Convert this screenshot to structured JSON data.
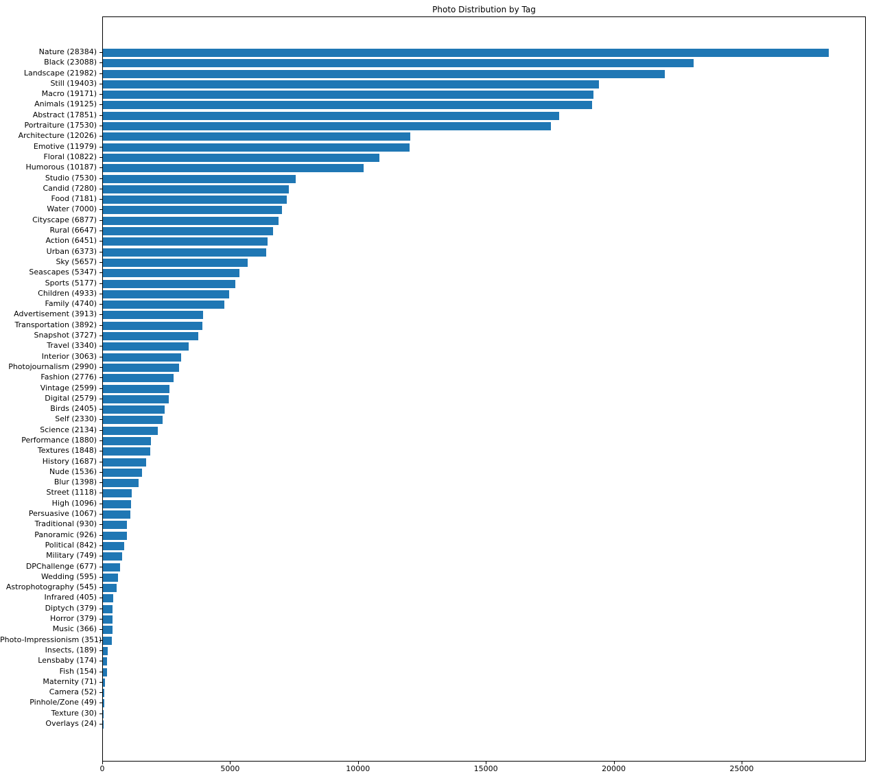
{
  "chart_data": {
    "type": "bar",
    "orientation": "horizontal",
    "title": "Photo Distribution by Tag",
    "xlabel": "",
    "ylabel": "",
    "categories": [
      "Nature (28384)",
      "Black (23088)",
      "Landscape (21982)",
      "Still (19403)",
      "Macro (19171)",
      "Animals (19125)",
      "Abstract (17851)",
      "Portraiture (17530)",
      "Architecture (12026)",
      "Emotive (11979)",
      "Floral (10822)",
      "Humorous (10187)",
      "Studio (7530)",
      "Candid (7280)",
      "Food (7181)",
      "Water (7000)",
      "Cityscape (6877)",
      "Rural (6647)",
      "Action (6451)",
      "Urban (6373)",
      "Sky (5657)",
      "Seascapes (5347)",
      "Sports (5177)",
      "Children (4933)",
      "Family (4740)",
      "Advertisement (3913)",
      "Transportation (3892)",
      "Snapshot (3727)",
      "Travel (3340)",
      "Interior (3063)",
      "Photojournalism (2990)",
      "Fashion (2776)",
      "Vintage (2599)",
      "Digital (2579)",
      "Birds (2405)",
      "Self (2330)",
      "Science (2134)",
      "Performance (1880)",
      "Textures (1848)",
      "History (1687)",
      "Nude (1536)",
      "Blur (1398)",
      "Street (1118)",
      "High (1096)",
      "Persuasive (1067)",
      "Traditional (930)",
      "Panoramic (926)",
      "Political (842)",
      "Military (749)",
      "DPChallenge (677)",
      "Wedding (595)",
      "Astrophotography (545)",
      "Infrared (405)",
      "Diptych (379)",
      "Horror (379)",
      "Music (366)",
      "Photo-Impressionism (351)",
      "Insects, (189)",
      "Lensbaby (174)",
      "Fish (154)",
      "Maternity (71)",
      "Camera (52)",
      "Pinhole/Zone (49)",
      "Texture (30)",
      "Overlays (24)"
    ],
    "values": [
      28384,
      23088,
      21982,
      19403,
      19171,
      19125,
      17851,
      17530,
      12026,
      11979,
      10822,
      10187,
      7530,
      7280,
      7181,
      7000,
      6877,
      6647,
      6451,
      6373,
      5657,
      5347,
      5177,
      4933,
      4740,
      3913,
      3892,
      3727,
      3340,
      3063,
      2990,
      2776,
      2599,
      2579,
      2405,
      2330,
      2134,
      1880,
      1848,
      1687,
      1536,
      1398,
      1118,
      1096,
      1067,
      930,
      926,
      842,
      749,
      677,
      595,
      545,
      405,
      379,
      379,
      366,
      351,
      189,
      174,
      154,
      71,
      52,
      49,
      30,
      24
    ],
    "xticks": [
      0,
      5000,
      10000,
      15000,
      20000,
      25000
    ],
    "xlim": [
      0,
      29803
    ],
    "grid": false,
    "legend": null,
    "bar_color": "#1f77b4",
    "spine_color": "#000000"
  }
}
